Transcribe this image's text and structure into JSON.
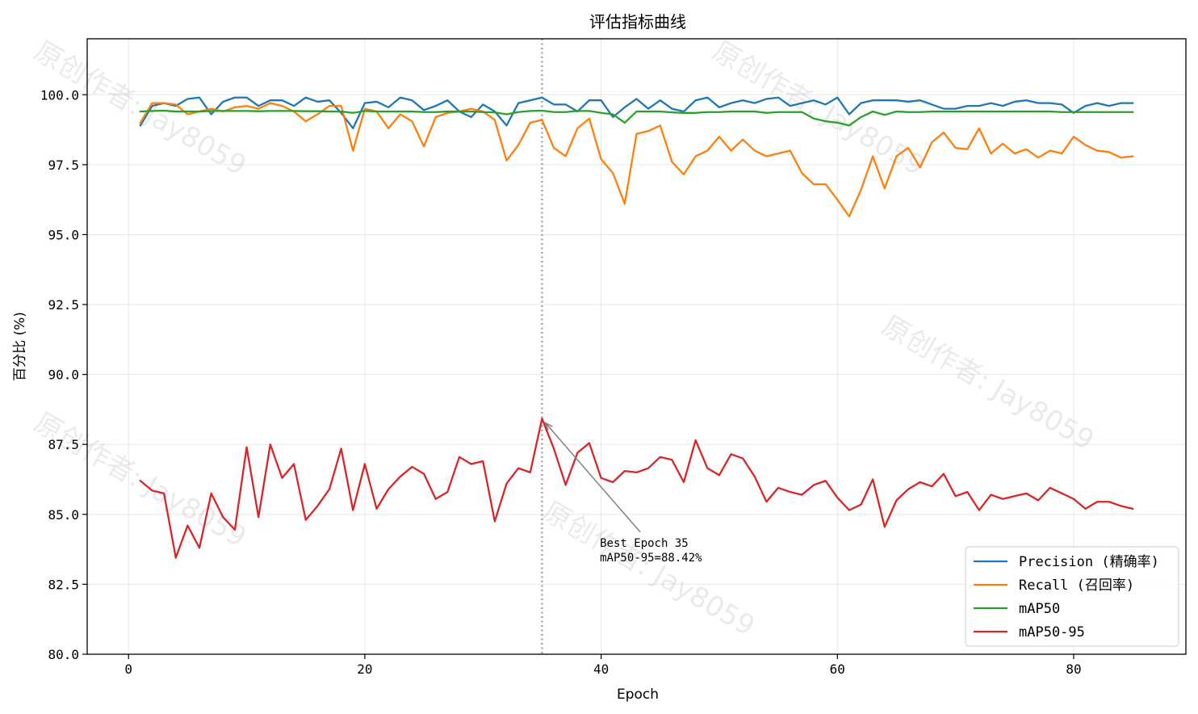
{
  "chart_data": {
    "type": "line",
    "title": "评估指标曲线",
    "xlabel": "Epoch",
    "ylabel": "百分比 (%)",
    "xlim": [
      -3.5,
      89.5
    ],
    "ylim": [
      80.0,
      102.0
    ],
    "xticks": [
      0,
      20,
      40,
      60,
      80
    ],
    "yticks": [
      80.0,
      82.5,
      85.0,
      87.5,
      90.0,
      92.5,
      95.0,
      97.5,
      100.0
    ],
    "xtick_labels": [
      "0",
      "20",
      "40",
      "60",
      "80"
    ],
    "ytick_labels": [
      "80.0",
      "82.5",
      "85.0",
      "87.5",
      "90.0",
      "92.5",
      "95.0",
      "97.5",
      "100.0"
    ],
    "grid": true,
    "legend_position": "bottom-right",
    "x": [
      1,
      2,
      3,
      4,
      5,
      6,
      7,
      8,
      9,
      10,
      11,
      12,
      13,
      14,
      15,
      16,
      17,
      18,
      19,
      20,
      21,
      22,
      23,
      24,
      25,
      26,
      27,
      28,
      29,
      30,
      31,
      32,
      33,
      34,
      35,
      36,
      37,
      38,
      39,
      40,
      41,
      42,
      43,
      44,
      45,
      46,
      47,
      48,
      49,
      50,
      51,
      52,
      53,
      54,
      55,
      56,
      57,
      58,
      59,
      60,
      61,
      62,
      63,
      64,
      65,
      66,
      67,
      68,
      69,
      70,
      71,
      72,
      73,
      74,
      75,
      76,
      77,
      78,
      79,
      80,
      81,
      82,
      83,
      84,
      85
    ],
    "series": [
      {
        "name": "Precision (精确率)",
        "color": "#1f77b4",
        "values": [
          98.9,
          99.6,
          99.7,
          99.6,
          99.85,
          99.9,
          99.3,
          99.75,
          99.9,
          99.9,
          99.6,
          99.8,
          99.8,
          99.6,
          99.9,
          99.75,
          99.8,
          99.35,
          98.8,
          99.7,
          99.75,
          99.55,
          99.9,
          99.8,
          99.45,
          99.6,
          99.8,
          99.4,
          99.2,
          99.65,
          99.4,
          98.9,
          99.7,
          99.8,
          99.9,
          99.65,
          99.65,
          99.4,
          99.8,
          99.8,
          99.2,
          99.55,
          99.85,
          99.5,
          99.8,
          99.5,
          99.4,
          99.8,
          99.9,
          99.55,
          99.7,
          99.8,
          99.7,
          99.85,
          99.9,
          99.6,
          99.7,
          99.8,
          99.65,
          99.9,
          99.3,
          99.7,
          99.8,
          99.8,
          99.8,
          99.75,
          99.8,
          99.65,
          99.5,
          99.5,
          99.6,
          99.6,
          99.7,
          99.6,
          99.75,
          99.8,
          99.7,
          99.7,
          99.65,
          99.35,
          99.6,
          99.7,
          99.6,
          99.7,
          99.7
        ]
      },
      {
        "name": "Recall (召回率)",
        "color": "#ff7f0e",
        "values": [
          99.0,
          99.7,
          99.7,
          99.65,
          99.3,
          99.4,
          99.5,
          99.4,
          99.55,
          99.6,
          99.5,
          99.7,
          99.6,
          99.4,
          99.05,
          99.3,
          99.6,
          99.6,
          98.0,
          99.5,
          99.4,
          98.8,
          99.3,
          99.05,
          98.15,
          99.2,
          99.35,
          99.4,
          99.5,
          99.4,
          99.1,
          97.65,
          98.2,
          99.0,
          99.1,
          98.1,
          97.8,
          98.8,
          99.15,
          97.7,
          97.2,
          96.1,
          98.6,
          98.7,
          98.9,
          97.6,
          97.15,
          97.8,
          98.0,
          98.5,
          98.0,
          98.4,
          98.0,
          97.8,
          97.9,
          98.0,
          97.2,
          96.8,
          96.8,
          96.25,
          95.65,
          96.6,
          97.8,
          96.65,
          97.8,
          98.1,
          97.4,
          98.3,
          98.65,
          98.1,
          98.05,
          98.8,
          97.9,
          98.25,
          97.9,
          98.05,
          97.75,
          98.0,
          97.9,
          98.5,
          98.2,
          98.0,
          97.95,
          97.75,
          97.8
        ]
      },
      {
        "name": "mAP50",
        "color": "#2ca02c",
        "values": [
          99.4,
          99.42,
          99.43,
          99.4,
          99.4,
          99.4,
          99.42,
          99.42,
          99.42,
          99.42,
          99.41,
          99.42,
          99.42,
          99.42,
          99.41,
          99.41,
          99.4,
          99.4,
          99.35,
          99.42,
          99.4,
          99.4,
          99.4,
          99.4,
          99.38,
          99.38,
          99.4,
          99.4,
          99.4,
          99.38,
          99.37,
          99.3,
          99.38,
          99.42,
          99.43,
          99.38,
          99.38,
          99.42,
          99.42,
          99.35,
          99.3,
          99.0,
          99.4,
          99.4,
          99.4,
          99.37,
          99.35,
          99.35,
          99.38,
          99.38,
          99.4,
          99.4,
          99.4,
          99.35,
          99.38,
          99.38,
          99.38,
          99.15,
          99.05,
          99.0,
          98.9,
          99.2,
          99.4,
          99.28,
          99.4,
          99.38,
          99.38,
          99.4,
          99.4,
          99.4,
          99.4,
          99.4,
          99.4,
          99.4,
          99.4,
          99.4,
          99.4,
          99.4,
          99.38,
          99.38,
          99.38,
          99.38,
          99.38,
          99.38,
          99.38
        ]
      },
      {
        "name": "mAP50-95",
        "color": "#d62728",
        "values": [
          86.2,
          85.85,
          85.75,
          83.45,
          84.6,
          83.8,
          85.75,
          84.9,
          84.45,
          87.4,
          84.9,
          87.5,
          86.3,
          86.8,
          84.8,
          85.3,
          85.9,
          87.35,
          85.15,
          86.8,
          85.2,
          85.9,
          86.35,
          86.7,
          86.45,
          85.55,
          85.8,
          87.05,
          86.8,
          86.9,
          84.75,
          86.1,
          86.65,
          86.5,
          88.42,
          87.35,
          86.05,
          87.2,
          87.55,
          86.3,
          86.15,
          86.55,
          86.5,
          86.65,
          87.05,
          86.95,
          86.15,
          87.65,
          86.65,
          86.4,
          87.15,
          87.0,
          86.35,
          85.45,
          85.95,
          85.8,
          85.7,
          86.05,
          86.2,
          85.6,
          85.15,
          85.35,
          86.25,
          84.55,
          85.5,
          85.9,
          86.15,
          86.0,
          86.45,
          85.65,
          85.8,
          85.15,
          85.7,
          85.55,
          85.65,
          85.75,
          85.5,
          85.95,
          85.75,
          85.55,
          85.2,
          85.45,
          85.45,
          85.3,
          85.2
        ]
      }
    ],
    "annotation": {
      "line1": "Best Epoch 35",
      "line2": "mAP50-95=88.42%",
      "epoch": 35,
      "value": 88.42,
      "text_epoch": 39.9,
      "text_value": 83.5,
      "vline_color": "#999999",
      "arrow_color": "#808080"
    },
    "watermark": "原创作者: Jay8059"
  }
}
